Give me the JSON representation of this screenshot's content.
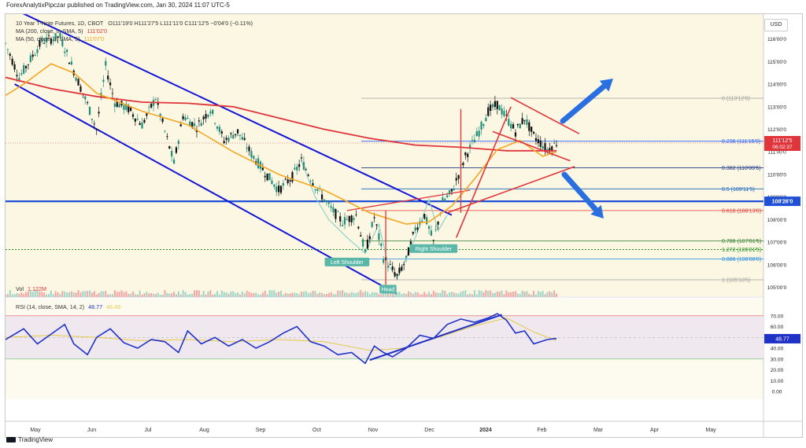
{
  "publisher_line": "ForexAnalytixPipczar published on TradingView.com, Jan 30, 2024 11:07 UTC-5",
  "footer": {
    "brand": "TradingView"
  },
  "currency_button": "USD",
  "legend": {
    "symbol": "10 Year T-Note Futures, 1D, CBOT",
    "ohlc": "O111'19'0 H111'27'5 L111'11'0 C111'12'5 −0'04'0 (−0.11%)",
    "ma200_label": "MA (200, close, 0, SMA, 5)",
    "ma200_value": "111'02'0",
    "ma50_label": "MA (50, close, 0, SMA, 5)",
    "ma50_value": "111'07'0",
    "vol_label": "Vol",
    "vol_value": "1.122M",
    "rsi_label": "RSI (14, close, SMA, 14, 2)",
    "rsi_value": "48.77",
    "rsi_ma_value": "46.49"
  },
  "colors": {
    "background": "#fbf7e3",
    "candle_up": "#1f8f7a",
    "candle_down": "#111111",
    "ma200": "#e0353a",
    "ma50": "#f5a623",
    "channel": "#1515d6",
    "support": "#1e4fd6",
    "arrow": "#2a6fe0",
    "pattern": "#8fd1c6",
    "fib_zero": "#9e9e9e",
    "fib_0236": "#2962ff",
    "fib_0382": "#1e3a8a",
    "fib_05": "#1565c0",
    "fib_0618": "#e53935",
    "fib_0786": "#2e7d32",
    "fib_1272": "#1b8f1b",
    "fib_0886": "#1e88e5",
    "rsi": "#2031c8",
    "rsi_ma": "#e6c84a"
  },
  "chart_data": {
    "type": "candlestick",
    "title": "10 Year T-Note Futures, 1D, CBOT",
    "x_axis": {
      "ticks": [
        "May",
        "Jun",
        "Jul",
        "Aug",
        "Sep",
        "Oct",
        "Nov",
        "Dec",
        "2024",
        "Feb",
        "Mar",
        "Apr",
        "May"
      ]
    },
    "price_axis": {
      "ticks": [
        "116'00'0",
        "115'00'0",
        "114'00'0",
        "113'00'0",
        "112'00'0",
        "111'00'0",
        "110'00'0",
        "109'00'0",
        "108'00'0",
        "107'00'0",
        "106'00'0",
        "105'00'0"
      ],
      "range": [
        104.6,
        117.1
      ]
    },
    "last_price": {
      "value": "111'12'5",
      "countdown": "06:02:37"
    },
    "horizontal_level": {
      "value": "108'26'0"
    },
    "fibonacci_levels": [
      {
        "ratio": "0",
        "label": "0 (113'12'0)",
        "price": 113.375
      },
      {
        "ratio": "0.236",
        "label": "0.236 (111'15'0)",
        "price": 111.47
      },
      {
        "ratio": "0.382",
        "label": "0.382 (110'09'5)",
        "price": 110.29
      },
      {
        "ratio": "0.5",
        "label": "0.5 (109'11'5)",
        "price": 109.36
      },
      {
        "ratio": "0.618",
        "label": "0.618 (108'13'0)",
        "price": 108.4
      },
      {
        "ratio": "0.786",
        "label": "0.786 (107'01'5)",
        "price": 107.05
      },
      {
        "ratio": "1.272",
        "label": "1.272 (106'21'5)",
        "price": 106.67
      },
      {
        "ratio": "0.886",
        "label": "0.886 (106'08'0)",
        "price": 106.25
      },
      {
        "ratio": "1",
        "label": "1 (105'10'5)",
        "price": 105.33
      }
    ],
    "pattern_labels": [
      "Left Shoulder",
      "Head",
      "Right Shoulder"
    ],
    "price_path": [
      [
        0,
        115.8
      ],
      [
        6,
        114.3
      ],
      [
        16,
        115.9
      ],
      [
        24,
        116.1
      ],
      [
        30,
        114.6
      ],
      [
        36,
        113.1
      ],
      [
        40,
        112.0
      ],
      [
        44,
        114.8
      ],
      [
        48,
        113.2
      ],
      [
        54,
        112.9
      ],
      [
        60,
        112.2
      ],
      [
        66,
        113.4
      ],
      [
        70,
        111.9
      ],
      [
        74,
        110.5
      ],
      [
        78,
        112.6
      ],
      [
        84,
        112.1
      ],
      [
        90,
        112.9
      ],
      [
        96,
        111.5
      ],
      [
        102,
        111.9
      ],
      [
        108,
        110.9
      ],
      [
        114,
        110.1
      ],
      [
        120,
        109.3
      ],
      [
        126,
        109.9
      ],
      [
        130,
        110.6
      ],
      [
        136,
        109.5
      ],
      [
        142,
        108.6
      ],
      [
        148,
        107.9
      ],
      [
        154,
        108.2
      ],
      [
        158,
        106.5
      ],
      [
        162,
        108.1
      ],
      [
        166,
        106.3
      ],
      [
        172,
        105.5
      ],
      [
        176,
        106.2
      ],
      [
        180,
        107.6
      ],
      [
        184,
        108.2
      ],
      [
        188,
        107.0
      ],
      [
        192,
        108.8
      ],
      [
        196,
        109.2
      ],
      [
        202,
        110.8
      ],
      [
        208,
        111.9
      ],
      [
        212,
        112.8
      ],
      [
        216,
        113.1
      ],
      [
        220,
        112.5
      ],
      [
        224,
        111.9
      ],
      [
        228,
        112.5
      ],
      [
        232,
        111.7
      ],
      [
        238,
        111.1
      ],
      [
        242,
        111.4
      ]
    ],
    "moving_averages": [
      {
        "name": "MA (200)",
        "path": [
          [
            0,
            114.3
          ],
          [
            20,
            113.8
          ],
          [
            40,
            113.45
          ],
          [
            60,
            113.2
          ],
          [
            80,
            113.15
          ],
          [
            100,
            113.0
          ],
          [
            120,
            112.5
          ],
          [
            140,
            112.0
          ],
          [
            160,
            111.6
          ],
          [
            180,
            111.3
          ],
          [
            200,
            111.2
          ],
          [
            220,
            111.05
          ],
          [
            242,
            111.05
          ]
        ]
      },
      {
        "name": "MA (50)",
        "path": [
          [
            0,
            113.5
          ],
          [
            8,
            114.0
          ],
          [
            20,
            114.9
          ],
          [
            30,
            114.5
          ],
          [
            40,
            113.6
          ],
          [
            60,
            112.8
          ],
          [
            80,
            112.2
          ],
          [
            100,
            111.0
          ],
          [
            120,
            110.0
          ],
          [
            140,
            109.3
          ],
          [
            160,
            108.3
          ],
          [
            176,
            107.8
          ],
          [
            186,
            107.9
          ],
          [
            196,
            108.6
          ],
          [
            206,
            109.8
          ],
          [
            216,
            111.1
          ],
          [
            226,
            111.5
          ],
          [
            236,
            110.8
          ],
          [
            242,
            111.0
          ]
        ]
      }
    ],
    "volume": {
      "label": "Vol",
      "value": "1.122M"
    },
    "rsi": {
      "label": "RSI (14, close, SMA, 14, 2)",
      "value": 48.77,
      "ticks": [
        "70.00",
        "60.00",
        "50.00",
        "40.00",
        "30.00",
        "20.00",
        "10.00",
        "0.00"
      ],
      "range": [
        0,
        80
      ],
      "band": [
        30,
        70
      ],
      "path": [
        [
          0,
          48
        ],
        [
          8,
          58
        ],
        [
          14,
          44
        ],
        [
          20,
          53
        ],
        [
          26,
          62
        ],
        [
          30,
          44
        ],
        [
          36,
          34
        ],
        [
          40,
          50
        ],
        [
          46,
          58
        ],
        [
          52,
          45
        ],
        [
          58,
          40
        ],
        [
          64,
          48
        ],
        [
          70,
          46
        ],
        [
          76,
          36
        ],
        [
          80,
          56
        ],
        [
          86,
          44
        ],
        [
          92,
          50
        ],
        [
          98,
          42
        ],
        [
          104,
          48
        ],
        [
          110,
          40
        ],
        [
          116,
          46
        ],
        [
          122,
          54
        ],
        [
          128,
          60
        ],
        [
          134,
          46
        ],
        [
          140,
          42
        ],
        [
          146,
          34
        ],
        [
          152,
          36
        ],
        [
          158,
          26
        ],
        [
          162,
          42
        ],
        [
          166,
          36
        ],
        [
          170,
          32
        ],
        [
          176,
          40
        ],
        [
          182,
          52
        ],
        [
          188,
          49
        ],
        [
          194,
          62
        ],
        [
          200,
          67
        ],
        [
          206,
          64
        ],
        [
          212,
          68
        ],
        [
          216,
          72
        ],
        [
          220,
          66
        ],
        [
          224,
          54
        ],
        [
          228,
          56
        ],
        [
          232,
          44
        ],
        [
          238,
          48
        ],
        [
          242,
          49
        ]
      ],
      "ma_path": [
        [
          0,
          50
        ],
        [
          20,
          52
        ],
        [
          40,
          50
        ],
        [
          60,
          47
        ],
        [
          80,
          48
        ],
        [
          100,
          46
        ],
        [
          120,
          48
        ],
        [
          140,
          46
        ],
        [
          160,
          38
        ],
        [
          175,
          40
        ],
        [
          190,
          50
        ],
        [
          205,
          60
        ],
        [
          220,
          68
        ],
        [
          232,
          55
        ],
        [
          242,
          47
        ]
      ]
    }
  }
}
